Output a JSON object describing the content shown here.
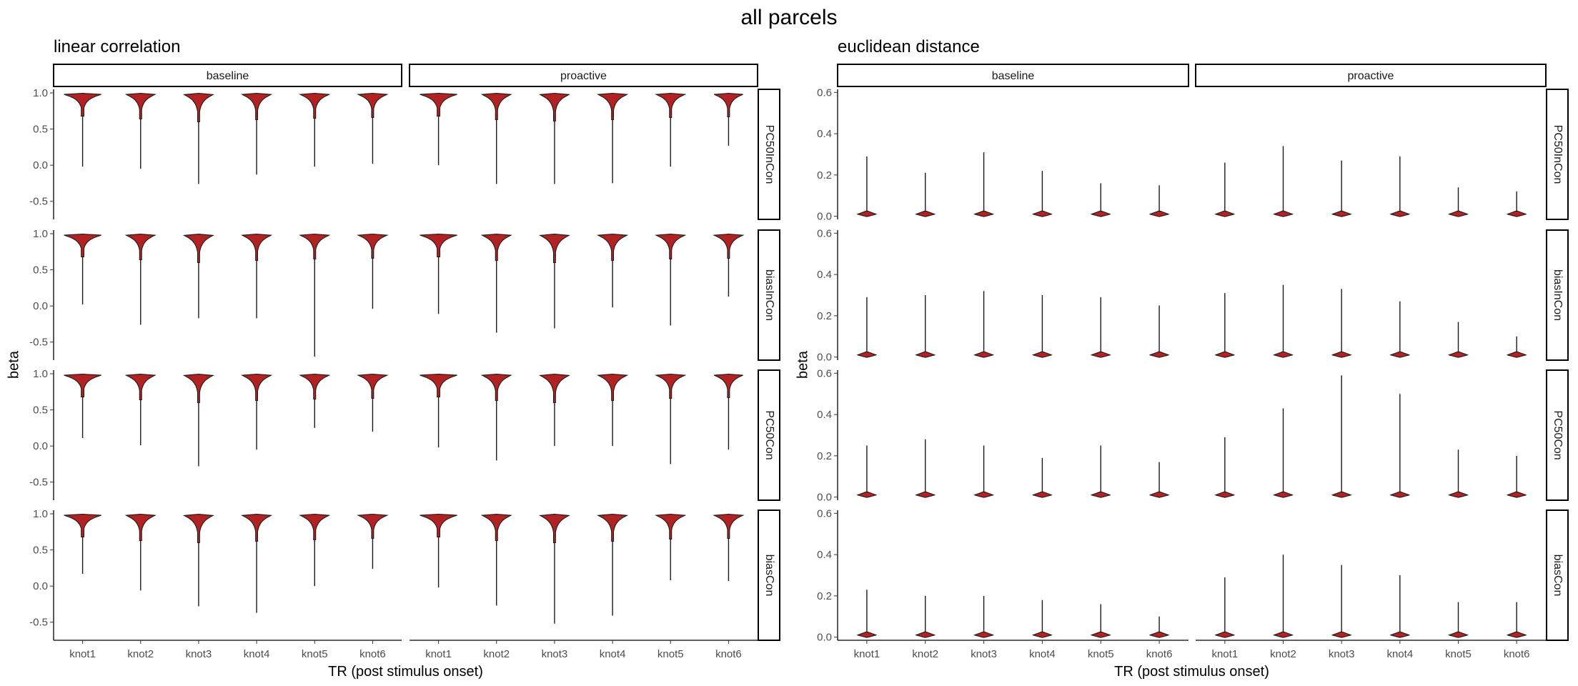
{
  "figure_title": "all parcels",
  "colors": {
    "violin_fill": "#B22222",
    "violin_outline": "#1a1a1a",
    "strip_border": "#000000",
    "text": "#000000",
    "tick_text": "#4d4d4d"
  },
  "chart_data": [
    {
      "type": "violin",
      "title": "linear correlation",
      "xlabel": "TR (post stimulus onset)",
      "ylabel": "beta",
      "ylim": [
        -0.75,
        1.05
      ],
      "yticks": [
        -0.5,
        0.0,
        0.5,
        1.0
      ],
      "ytick_labels": [
        "-0.5",
        "0.0",
        "0.5",
        "1.0"
      ],
      "categories": [
        "knot1",
        "knot2",
        "knot3",
        "knot4",
        "knot5",
        "knot6"
      ],
      "facet_cols": [
        "baseline",
        "proactive"
      ],
      "facet_rows": [
        "PC50InCon",
        "biasInCon",
        "PC50Con",
        "biasCon"
      ],
      "grid": false,
      "panels": [
        {
          "row": "PC50InCon",
          "col": "baseline",
          "min": [
            -0.02,
            -0.05,
            -0.26,
            -0.13,
            -0.02,
            0.02
          ],
          "median": [
            0.96,
            0.92,
            0.88,
            0.91,
            0.93,
            0.94
          ]
        },
        {
          "row": "PC50InCon",
          "col": "proactive",
          "min": [
            0.0,
            -0.26,
            -0.26,
            -0.25,
            -0.02,
            0.27
          ],
          "median": [
            0.96,
            0.91,
            0.89,
            0.91,
            0.94,
            0.95
          ]
        },
        {
          "row": "biasInCon",
          "col": "baseline",
          "min": [
            0.02,
            -0.26,
            -0.17,
            -0.17,
            -0.7,
            -0.04
          ],
          "median": [
            0.96,
            0.92,
            0.88,
            0.91,
            0.93,
            0.94
          ]
        },
        {
          "row": "biasInCon",
          "col": "proactive",
          "min": [
            -0.11,
            -0.37,
            -0.31,
            -0.02,
            -0.27,
            0.13
          ],
          "median": [
            0.96,
            0.91,
            0.88,
            0.91,
            0.93,
            0.94
          ]
        },
        {
          "row": "PC50Con",
          "col": "baseline",
          "min": [
            0.11,
            0.01,
            -0.28,
            -0.05,
            0.25,
            0.2
          ],
          "median": [
            0.96,
            0.92,
            0.88,
            0.91,
            0.93,
            0.94
          ]
        },
        {
          "row": "PC50Con",
          "col": "proactive",
          "min": [
            -0.02,
            -0.2,
            0.0,
            0.0,
            -0.25,
            -0.05
          ],
          "median": [
            0.96,
            0.91,
            0.88,
            0.91,
            0.94,
            0.95
          ]
        },
        {
          "row": "biasCon",
          "col": "baseline",
          "min": [
            0.17,
            -0.06,
            -0.28,
            -0.37,
            0.0,
            0.24
          ],
          "median": [
            0.96,
            0.91,
            0.88,
            0.9,
            0.92,
            0.94
          ]
        },
        {
          "row": "biasCon",
          "col": "proactive",
          "min": [
            -0.02,
            -0.27,
            -0.52,
            -0.41,
            0.08,
            0.07
          ],
          "median": [
            0.96,
            0.91,
            0.88,
            0.9,
            0.93,
            0.94
          ]
        }
      ]
    },
    {
      "type": "violin",
      "title": "euclidean distance",
      "xlabel": "TR (post stimulus onset)",
      "ylabel": "beta",
      "ylim": [
        -0.015,
        0.615
      ],
      "yticks": [
        0.0,
        0.2,
        0.4,
        0.6
      ],
      "ytick_labels": [
        "0.0",
        "0.2",
        "0.4",
        "0.6"
      ],
      "categories": [
        "knot1",
        "knot2",
        "knot3",
        "knot4",
        "knot5",
        "knot6"
      ],
      "facet_cols": [
        "baseline",
        "proactive"
      ],
      "facet_rows": [
        "PC50InCon",
        "biasInCon",
        "PC50Con",
        "biasCon"
      ],
      "grid": false,
      "panels": [
        {
          "row": "PC50InCon",
          "col": "baseline",
          "max": [
            0.29,
            0.21,
            0.31,
            0.22,
            0.16,
            0.15
          ],
          "median": [
            0.012,
            0.012,
            0.012,
            0.01,
            0.008,
            0.006
          ]
        },
        {
          "row": "PC50InCon",
          "col": "proactive",
          "max": [
            0.26,
            0.34,
            0.27,
            0.29,
            0.14,
            0.12
          ],
          "median": [
            0.012,
            0.014,
            0.012,
            0.01,
            0.008,
            0.006
          ]
        },
        {
          "row": "biasInCon",
          "col": "baseline",
          "max": [
            0.29,
            0.3,
            0.32,
            0.3,
            0.29,
            0.25
          ],
          "median": [
            0.012,
            0.012,
            0.012,
            0.01,
            0.008,
            0.006
          ]
        },
        {
          "row": "biasInCon",
          "col": "proactive",
          "max": [
            0.31,
            0.35,
            0.33,
            0.27,
            0.17,
            0.1
          ],
          "median": [
            0.012,
            0.014,
            0.012,
            0.01,
            0.008,
            0.006
          ]
        },
        {
          "row": "PC50Con",
          "col": "baseline",
          "max": [
            0.25,
            0.28,
            0.25,
            0.19,
            0.25,
            0.17
          ],
          "median": [
            0.012,
            0.012,
            0.012,
            0.01,
            0.008,
            0.006
          ]
        },
        {
          "row": "PC50Con",
          "col": "proactive",
          "max": [
            0.29,
            0.43,
            0.59,
            0.5,
            0.23,
            0.2
          ],
          "median": [
            0.012,
            0.014,
            0.012,
            0.01,
            0.008,
            0.006
          ]
        },
        {
          "row": "biasCon",
          "col": "baseline",
          "max": [
            0.23,
            0.2,
            0.2,
            0.18,
            0.16,
            0.1
          ],
          "median": [
            0.012,
            0.012,
            0.012,
            0.01,
            0.008,
            0.006
          ]
        },
        {
          "row": "biasCon",
          "col": "proactive",
          "max": [
            0.29,
            0.4,
            0.35,
            0.3,
            0.17,
            0.17
          ],
          "median": [
            0.012,
            0.014,
            0.012,
            0.01,
            0.008,
            0.006
          ]
        }
      ]
    }
  ]
}
